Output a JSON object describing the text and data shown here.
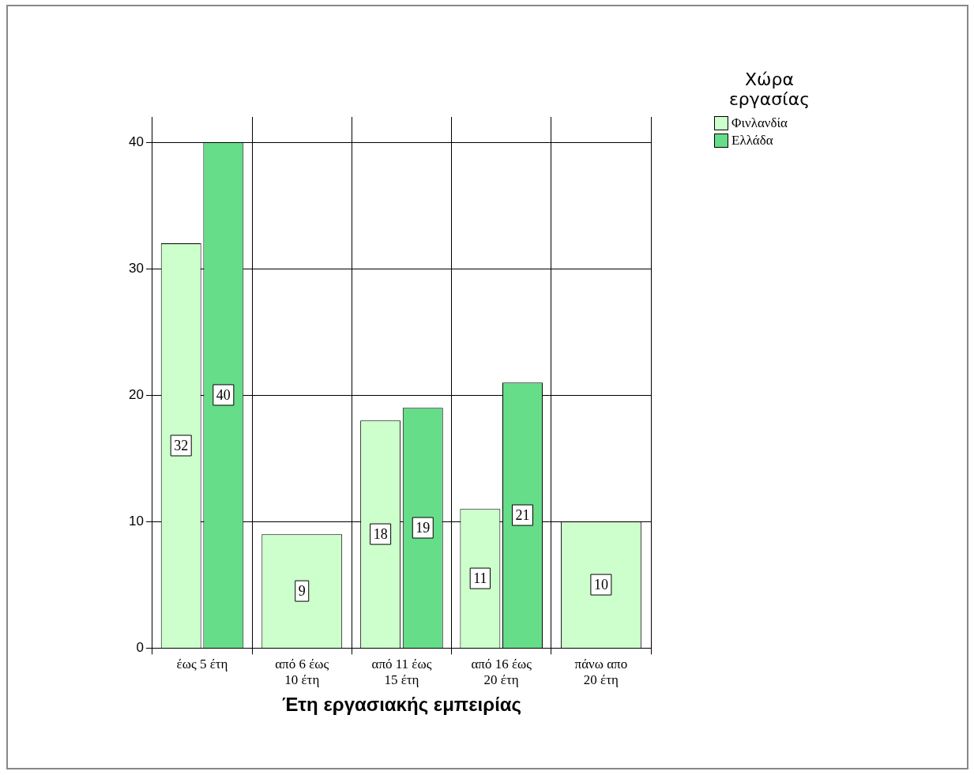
{
  "chart_data": {
    "type": "bar",
    "categories": [
      "έως 5 έτη",
      "από 6 έως 10 έτη",
      "από 11 έως 15 έτη",
      "από 16 έως 20 έτη",
      "πάνω απο 20 έτη"
    ],
    "series": [
      {
        "name": "Φινλανδία",
        "color": "#ccffcc",
        "values": [
          32,
          9,
          18,
          11,
          10
        ]
      },
      {
        "name": "Ελλάδα",
        "color": "#66dd88",
        "values": [
          40,
          null,
          19,
          21,
          null
        ]
      }
    ],
    "xlabel": "Έτη εργασιακής εμπειρίας",
    "legend_title": "Χώρα εργασίας",
    "ylim": [
      0,
      42
    ],
    "yticks": [
      0,
      10,
      20,
      30,
      40
    ],
    "grid": true,
    "legend": "top right",
    "data_labels": true
  }
}
